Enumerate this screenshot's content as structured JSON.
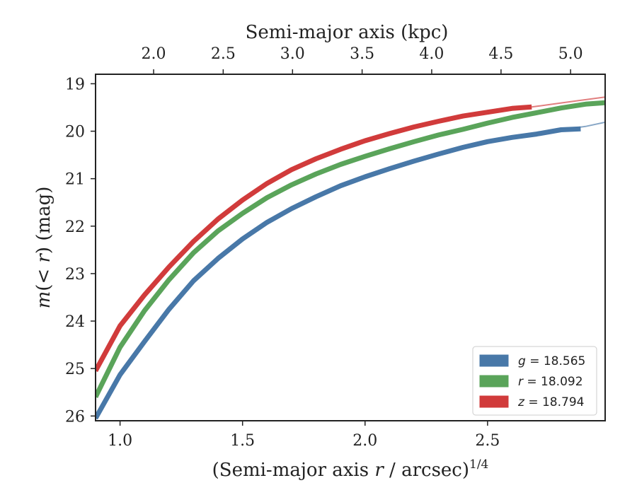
{
  "chart_data": {
    "type": "line",
    "xlabel_bottom": {
      "prefix": "(Semi-major axis ",
      "variable": "r",
      "middle": " / arcsec)",
      "superscript": "1/4"
    },
    "xlabel_top": "Semi-major axis (kpc)",
    "ylabel": {
      "prefix": "m",
      "middle": "(< ",
      "variable": "r",
      "suffix": ") (mag)"
    },
    "xlim": [
      0.9,
      2.98
    ],
    "ylim": [
      26.1,
      18.8
    ],
    "y_inverted": true,
    "x_ticks": [
      1.0,
      1.5,
      2.0,
      2.5
    ],
    "x_tick_labels": [
      "1.0",
      "1.5",
      "2.0",
      "2.5"
    ],
    "y_ticks": [
      19,
      20,
      21,
      22,
      23,
      24,
      25,
      26
    ],
    "y_tick_labels": [
      "19",
      "20",
      "21",
      "22",
      "23",
      "24",
      "25",
      "26"
    ],
    "top_axis": {
      "ticks_kpc": [
        2.0,
        2.5,
        3.0,
        3.5,
        4.0,
        4.5,
        5.0
      ],
      "tick_labels": [
        "2.0",
        "2.5",
        "3.0",
        "3.5",
        "4.0",
        "4.5",
        "5.0"
      ],
      "tick_positions_x": [
        1.137,
        1.421,
        1.704,
        1.988,
        2.272,
        2.555,
        2.839
      ]
    },
    "legend_position": "lower-right",
    "series": [
      {
        "name": "g = 18.565",
        "legend_var": "g",
        "legend_value": "18.565",
        "color": "#4878a8",
        "x": [
          0.9,
          1.0,
          1.1,
          1.2,
          1.3,
          1.4,
          1.5,
          1.6,
          1.7,
          1.8,
          1.9,
          2.0,
          2.1,
          2.2,
          2.3,
          2.4,
          2.5,
          2.6,
          2.7,
          2.8,
          2.88
        ],
        "y": [
          26.05,
          25.13,
          24.43,
          23.75,
          23.15,
          22.68,
          22.27,
          21.92,
          21.63,
          21.38,
          21.15,
          20.96,
          20.79,
          20.63,
          20.48,
          20.34,
          20.22,
          20.13,
          20.06,
          19.97,
          19.95
        ],
        "x_ext": [
          2.5,
          2.6,
          2.7,
          2.8,
          2.9,
          2.98
        ],
        "y_ext": [
          20.22,
          20.13,
          20.05,
          19.97,
          19.9,
          19.81
        ]
      },
      {
        "name": "r = 18.092",
        "legend_var": "r",
        "legend_value": "18.092",
        "color": "#5aa45a",
        "x": [
          0.9,
          1.0,
          1.1,
          1.2,
          1.3,
          1.4,
          1.5,
          1.6,
          1.7,
          1.8,
          1.9,
          2.0,
          2.1,
          2.2,
          2.3,
          2.4,
          2.5,
          2.6,
          2.7,
          2.8,
          2.9,
          2.98
        ],
        "y": [
          25.6,
          24.55,
          23.78,
          23.13,
          22.56,
          22.1,
          21.73,
          21.4,
          21.13,
          20.9,
          20.7,
          20.53,
          20.37,
          20.22,
          20.08,
          19.96,
          19.83,
          19.71,
          19.61,
          19.51,
          19.43,
          19.4
        ],
        "x_ext": [],
        "y_ext": []
      },
      {
        "name": "z = 18.794",
        "legend_var": "z",
        "legend_value": "18.794",
        "color": "#d13b3b",
        "x": [
          0.9,
          1.0,
          1.1,
          1.2,
          1.3,
          1.4,
          1.5,
          1.6,
          1.7,
          1.8,
          1.9,
          2.0,
          2.1,
          2.2,
          2.3,
          2.4,
          2.5,
          2.6,
          2.68
        ],
        "y": [
          25.05,
          24.1,
          23.45,
          22.86,
          22.32,
          21.85,
          21.45,
          21.1,
          20.81,
          20.58,
          20.38,
          20.2,
          20.05,
          19.91,
          19.79,
          19.68,
          19.6,
          19.52,
          19.49
        ],
        "x_ext": [
          2.68,
          2.75,
          2.85,
          2.98
        ],
        "y_ext": [
          19.49,
          19.44,
          19.37,
          19.28
        ]
      }
    ],
    "grid": false
  }
}
